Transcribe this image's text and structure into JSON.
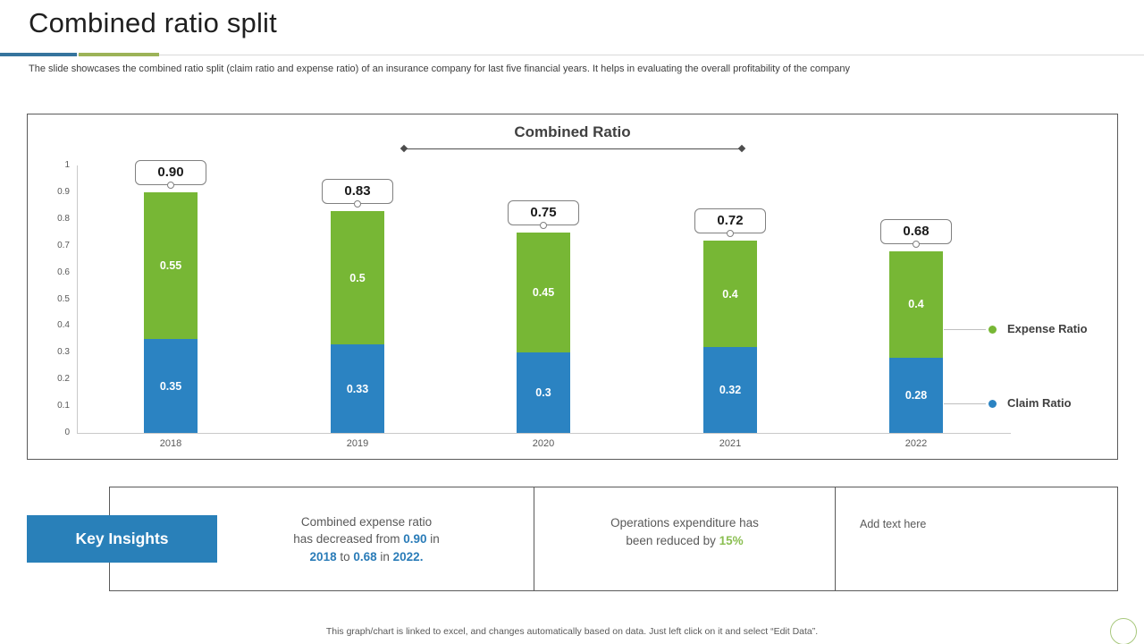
{
  "header": {
    "title": "Combined ratio split",
    "subtitle": "The slide showcases the combined ratio split (claim ratio and expense ratio) of an insurance company for last five financial years. It helps in evaluating the overall profitability of the company"
  },
  "chart_data": {
    "type": "bar",
    "stacked": true,
    "title": "Combined Ratio",
    "categories": [
      "2018",
      "2019",
      "2020",
      "2021",
      "2022"
    ],
    "series": [
      {
        "name": "Claim Ratio",
        "color": "#2b83c2",
        "values": [
          0.35,
          0.33,
          0.3,
          0.32,
          0.28
        ]
      },
      {
        "name": "Expense Ratio",
        "color": "#77b735",
        "values": [
          0.55,
          0.5,
          0.45,
          0.4,
          0.4
        ]
      }
    ],
    "segment_labels": [
      [
        "0.35",
        "0.33",
        "0.3",
        "0.32",
        "0.28"
      ],
      [
        "0.55",
        "0.5",
        "0.45",
        "0.4",
        "0.4"
      ]
    ],
    "totals": [
      0.9,
      0.83,
      0.75,
      0.72,
      0.68
    ],
    "total_labels": [
      "0.90",
      "0.83",
      "0.75",
      "0.72",
      "0.68"
    ],
    "ylim": [
      0,
      1
    ],
    "y_ticks": [
      "1",
      "0.9",
      "0.8",
      "0.7",
      "0.6",
      "0.5",
      "0.4",
      "0.3",
      "0.2",
      "0.1",
      "0"
    ],
    "grid": false,
    "legend_position": "right",
    "legend": [
      {
        "label": "Expense Ratio",
        "color": "#77b735"
      },
      {
        "label": "Claim Ratio",
        "color": "#2b83c2"
      }
    ]
  },
  "insights": {
    "heading": "Key Insights",
    "card1": {
      "segments": [
        {
          "t": "Combined expense ratio"
        },
        {
          "br": true
        },
        {
          "t": "has decreased from "
        },
        {
          "t": "0.90",
          "hl": "blue"
        },
        {
          "t": " in"
        },
        {
          "br": true
        },
        {
          "t": "2018",
          "hl": "blue"
        },
        {
          "t": " to "
        },
        {
          "t": "0.68",
          "hl": "blue"
        },
        {
          "t": " in "
        },
        {
          "t": "2022.",
          "hl": "blue"
        }
      ]
    },
    "card2": {
      "segments": [
        {
          "t": "Operations expenditure has"
        },
        {
          "br": true
        },
        {
          "t": "been reduced by "
        },
        {
          "t": "15%",
          "hl": "green"
        }
      ]
    },
    "card3": {
      "segments": [
        {
          "t": "Add text here"
        }
      ]
    }
  },
  "footer": {
    "note": "This graph/chart is linked to excel, and changes automatically based on data. Just left click on it and select “Edit Data”."
  },
  "colors": {
    "claim_blue": "#2b83c2",
    "expense_green": "#77b735",
    "accent_blue": "#36749d",
    "accent_green": "#9cb358",
    "banner_blue": "#2980b9",
    "highlight_blue": "#2a7cb8",
    "highlight_green": "#8bbf52"
  }
}
